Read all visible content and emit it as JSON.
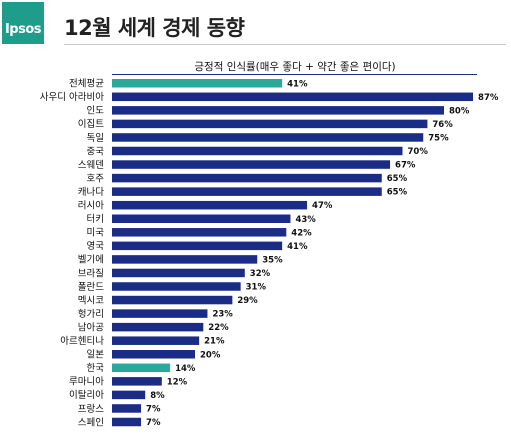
{
  "header": {
    "logo_text": "Ipsos",
    "title": "12월 세계 경제 동향"
  },
  "colors": {
    "bar": "#1b2c86",
    "highlight": "#2aa89a",
    "brand": "#1e9e8a"
  },
  "chart_data": {
    "type": "bar",
    "orientation": "horizontal",
    "title": "긍정적 인식률(매우 좋다 + 약간 좋은 편이다)",
    "unit": "%",
    "categories": [
      "전체평균",
      "사우디 아라비아",
      "인도",
      "이집트",
      "독일",
      "중국",
      "스웨덴",
      "호주",
      "캐나다",
      "러시아",
      "터키",
      "미국",
      "영국",
      "벨기에",
      "브라질",
      "폴란드",
      "멕시코",
      "헝가리",
      "남아공",
      "아르헨티나",
      "일본",
      "한국",
      "루마니아",
      "이탈리아",
      "프랑스",
      "스페인"
    ],
    "values": [
      41,
      87,
      80,
      76,
      75,
      70,
      67,
      65,
      65,
      47,
      43,
      42,
      41,
      35,
      32,
      31,
      29,
      23,
      22,
      21,
      20,
      14,
      12,
      8,
      7,
      7
    ],
    "value_labels": [
      "41%",
      "87%",
      "80%",
      "76%",
      "75%",
      "70%",
      "67%",
      "65%",
      "65%",
      "47%",
      "43%",
      "42%",
      "41%",
      "35%",
      "32%",
      "31%",
      "29%",
      "23%",
      "22%",
      "21%",
      "20%",
      "14%",
      "12%",
      "8%",
      "7%",
      "7%"
    ],
    "highlighted": [
      "전체평균",
      "한국"
    ],
    "xlim": [
      0,
      100
    ],
    "grid": false,
    "legend": "none"
  }
}
